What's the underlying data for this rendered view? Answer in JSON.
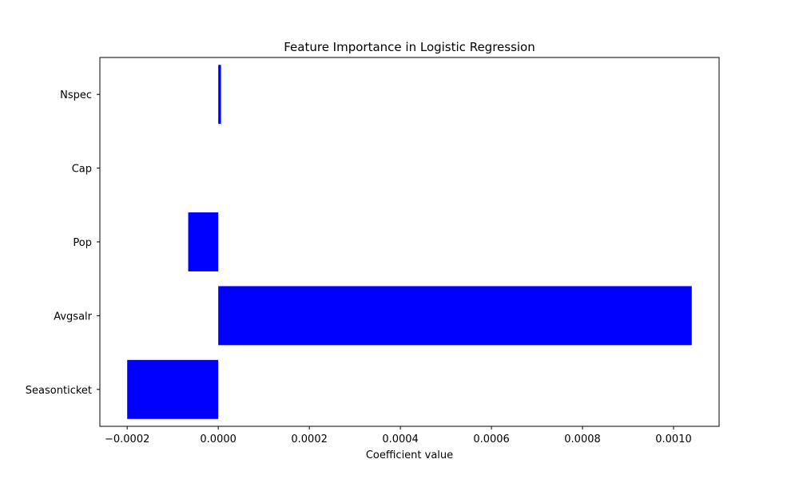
{
  "chart_data": {
    "type": "bar",
    "orientation": "horizontal",
    "title": "Feature Importance in Logistic Regression",
    "xlabel": "Coefficient value",
    "ylabel": "",
    "categories": [
      "Seasonticket",
      "Avgsalr",
      "Pop",
      "Cap",
      "Nspec"
    ],
    "values": [
      -0.0002,
      0.00104,
      -6.6e-05,
      0.0,
      6e-06
    ],
    "xlim": [
      -0.00026,
      0.0011
    ],
    "xticks": [
      -0.0002,
      0.0,
      0.0002,
      0.0004,
      0.0006,
      0.0008,
      0.001
    ],
    "xtick_labels": [
      "−0.0002",
      "0.0000",
      "0.0002",
      "0.0004",
      "0.0006",
      "0.0008",
      "0.0010"
    ],
    "bar_color": "#0000ff",
    "grid": false,
    "legend": "none"
  }
}
